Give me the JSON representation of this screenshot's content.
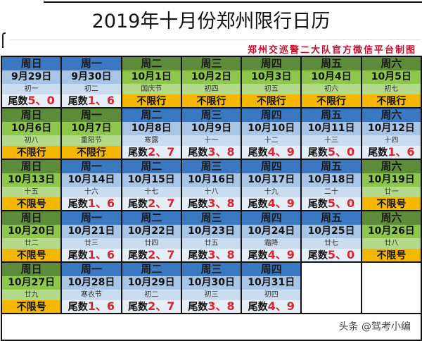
{
  "header": {
    "title": "2019年十月份郑州限行日历",
    "credit": "郑州交巡警二大队官方微信平台制图"
  },
  "colors": {
    "restricted_header": "#3b78c2",
    "free_header": "#5d8c3a",
    "free_status": "#f5b800",
    "digits": "#d9252f"
  },
  "weekdays": [
    "周日",
    "周一",
    "周二",
    "周三",
    "周四",
    "周五",
    "周六"
  ],
  "rows": [
    [
      {
        "wd": "周日",
        "date": "9月29日",
        "lunar": "初一",
        "type": "blue",
        "prefix": "尾数",
        "digits": "5、0"
      },
      {
        "wd": "周一",
        "date": "9月30日",
        "lunar": "初二",
        "type": "blue",
        "prefix": "尾数",
        "digits": "1、6"
      },
      {
        "wd": "周二",
        "date": "10月1日",
        "lunar": "国庆节",
        "type": "green",
        "prefix": "不限行",
        "digits": ""
      },
      {
        "wd": "周三",
        "date": "10月2日",
        "lunar": "初四",
        "type": "green",
        "prefix": "不限行",
        "digits": ""
      },
      {
        "wd": "周四",
        "date": "10月3日",
        "lunar": "初五",
        "type": "green",
        "prefix": "不限行",
        "digits": ""
      },
      {
        "wd": "周五",
        "date": "10月4日",
        "lunar": "初六",
        "type": "green",
        "prefix": "不限行",
        "digits": ""
      },
      {
        "wd": "周六",
        "date": "10月5日",
        "lunar": "初七",
        "type": "green",
        "prefix": "不限行",
        "digits": ""
      }
    ],
    [
      {
        "wd": "周日",
        "date": "10月6日",
        "lunar": "初八",
        "type": "green",
        "prefix": "不限行",
        "digits": ""
      },
      {
        "wd": "周一",
        "date": "10月7日",
        "lunar": "重阳节",
        "type": "green",
        "prefix": "不限行",
        "digits": ""
      },
      {
        "wd": "周二",
        "date": "10月8日",
        "lunar": "寒露",
        "type": "blue",
        "prefix": "尾数",
        "digits": "2、7"
      },
      {
        "wd": "周三",
        "date": "10月9日",
        "lunar": "十一",
        "type": "blue",
        "prefix": "尾数",
        "digits": "3、8"
      },
      {
        "wd": "周四",
        "date": "10月10日",
        "lunar": "十二",
        "type": "blue",
        "prefix": "尾数",
        "digits": "4、9"
      },
      {
        "wd": "周五",
        "date": "10月11日",
        "lunar": "十三",
        "type": "blue",
        "prefix": "尾数",
        "digits": "5、0"
      },
      {
        "wd": "周六",
        "date": "10月12日",
        "lunar": "十四",
        "type": "blue",
        "prefix": "尾数",
        "digits": "1、6"
      }
    ],
    [
      {
        "wd": "周日",
        "date": "10月13日",
        "lunar": "十五",
        "type": "green",
        "prefix": "不限号",
        "digits": ""
      },
      {
        "wd": "周一",
        "date": "10月14日",
        "lunar": "十六",
        "type": "blue",
        "prefix": "尾数",
        "digits": "1、6"
      },
      {
        "wd": "周二",
        "date": "10月15日",
        "lunar": "十七",
        "type": "blue",
        "prefix": "尾数",
        "digits": "2、7"
      },
      {
        "wd": "周三",
        "date": "10月16日",
        "lunar": "十八",
        "type": "blue",
        "prefix": "尾数",
        "digits": "3、8"
      },
      {
        "wd": "周四",
        "date": "10月17日",
        "lunar": "十九",
        "type": "blue",
        "prefix": "尾数",
        "digits": "4、9"
      },
      {
        "wd": "周五",
        "date": "10月18日",
        "lunar": "二十",
        "type": "blue",
        "prefix": "尾数",
        "digits": "5、0"
      },
      {
        "wd": "周六",
        "date": "10月19日",
        "lunar": "廿一",
        "type": "green",
        "prefix": "不限号",
        "digits": ""
      }
    ],
    [
      {
        "wd": "周日",
        "date": "10月20日",
        "lunar": "廿二",
        "type": "green",
        "prefix": "不限号",
        "digits": ""
      },
      {
        "wd": "周一",
        "date": "10月21日",
        "lunar": "廿三",
        "type": "blue",
        "prefix": "尾数",
        "digits": "1、6"
      },
      {
        "wd": "周二",
        "date": "10月22日",
        "lunar": "廿四",
        "type": "blue",
        "prefix": "尾数",
        "digits": "2、7"
      },
      {
        "wd": "周三",
        "date": "10月23日",
        "lunar": "廿五",
        "type": "blue",
        "prefix": "尾数",
        "digits": "3、8"
      },
      {
        "wd": "周四",
        "date": "10月24日",
        "lunar": "霜降",
        "type": "blue",
        "prefix": "尾数",
        "digits": "4、9"
      },
      {
        "wd": "周五",
        "date": "10月25日",
        "lunar": "廿七",
        "type": "blue",
        "prefix": "尾数",
        "digits": "5、0"
      },
      {
        "wd": "周六",
        "date": "10月26日",
        "lunar": "廿八",
        "type": "green",
        "prefix": "不限号",
        "digits": ""
      }
    ],
    [
      {
        "wd": "周日",
        "date": "10月27日",
        "lunar": "廿九",
        "type": "green",
        "prefix": "不限号",
        "digits": ""
      },
      {
        "wd": "周一",
        "date": "10月28日",
        "lunar": "寒衣节",
        "type": "blue",
        "prefix": "尾数",
        "digits": "1、6"
      },
      {
        "wd": "周二",
        "date": "10月29日",
        "lunar": "初二",
        "type": "blue",
        "prefix": "尾数",
        "digits": "2、7"
      },
      {
        "wd": "周三",
        "date": "10月30日",
        "lunar": "初三",
        "type": "blue",
        "prefix": "尾数",
        "digits": "3、8"
      },
      {
        "wd": "周四",
        "date": "10月31日",
        "lunar": "初四",
        "type": "blue",
        "prefix": "尾数",
        "digits": "4、9"
      },
      {
        "wd": "",
        "date": "",
        "lunar": "",
        "type": "empty",
        "prefix": "",
        "digits": ""
      },
      {
        "wd": "",
        "date": "",
        "lunar": "",
        "type": "empty",
        "prefix": "",
        "digits": ""
      }
    ]
  ],
  "footer": {
    "watermark": "头条 @驾考小编"
  }
}
